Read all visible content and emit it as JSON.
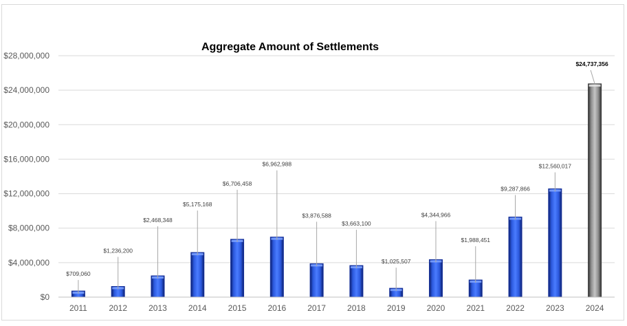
{
  "chart_data": {
    "type": "bar",
    "title": "Aggregate Amount of Settlements",
    "xlabel": "",
    "ylabel": "",
    "categories": [
      "2011",
      "2012",
      "2013",
      "2014",
      "2015",
      "2016",
      "2017",
      "2018",
      "2019",
      "2020",
      "2021",
      "2022",
      "2023",
      "2024"
    ],
    "values": [
      709060,
      1236200,
      2468348,
      5175168,
      6706458,
      6962988,
      3876588,
      3663100,
      1025507,
      4344966,
      1988451,
      9287866,
      12560017,
      24737356
    ],
    "data_labels": [
      "$709,060",
      "$1,236,200",
      "$2,468,348",
      "$5,175,168",
      "$6,706,458",
      "$6,962,988",
      "$3,876,588",
      "$3,663,100",
      "$1,025,507",
      "$4,344,966",
      "$1,988,451",
      "$9,287,866",
      "$12,560,017",
      "$24,737,356"
    ],
    "ylim": [
      0,
      28000000
    ],
    "yticks": [
      0,
      4000000,
      8000000,
      12000000,
      16000000,
      20000000,
      24000000,
      28000000
    ],
    "ytick_labels": [
      "$0",
      "$4,000,000",
      "$8,000,000",
      "$12,000,000",
      "$16,000,000",
      "$20,000,000",
      "$24,000,000",
      "$28,000,000"
    ],
    "grid": true,
    "legend": "none",
    "colors": {
      "bar": "#2f5fe0",
      "bar_dark": "#15309a",
      "highlight_bar": "#9a9a9a",
      "highlight_bar_dark": "#3a3a3a",
      "gridline": "#d9d9d9",
      "leader_line": "#a6a6a6"
    },
    "highlight_category": "2024"
  }
}
